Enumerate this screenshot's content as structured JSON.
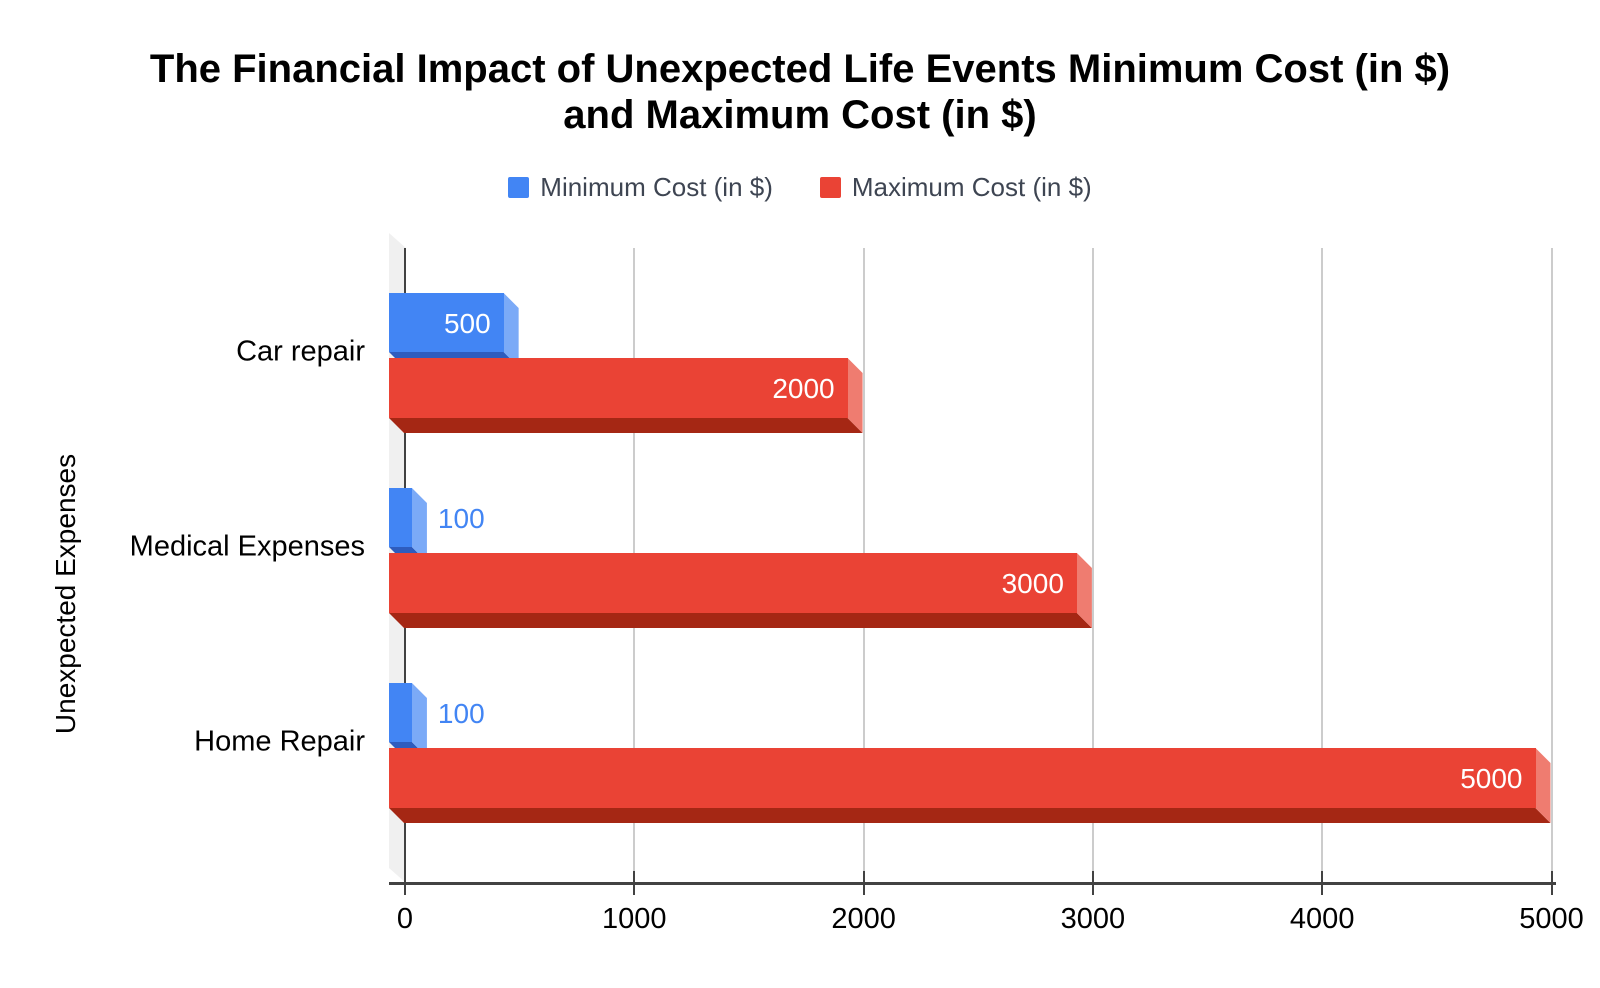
{
  "title": {
    "line1": "The Financial Impact of Unexpected Life Events Minimum Cost (in $)",
    "line2": "and Maximum Cost (in $)",
    "full": "The Financial Impact of Unexpected Life Events Minimum Cost (in $) and Maximum Cost (in $)"
  },
  "legend": {
    "items": [
      {
        "label": "Minimum Cost (in $)",
        "color": "#4285f4"
      },
      {
        "label": "Maximum Cost (in $)",
        "color": "#ea4335"
      }
    ]
  },
  "chart_data": {
    "type": "bar",
    "orientation": "horizontal",
    "style": "3d",
    "title": "The Financial Impact of Unexpected Life Events Minimum Cost (in $) and Maximum Cost (in $)",
    "xlabel": "",
    "ylabel": "Unexpected Expenses",
    "categories": [
      "Car repair",
      "Medical Expenses",
      "Home Repair"
    ],
    "series": [
      {
        "name": "Minimum Cost (in $)",
        "values": [
          500,
          100,
          100
        ],
        "color": "#4285f4",
        "side_color": "#7baaf7",
        "bottom_color": "#2e5cbe",
        "label_inside_color": "#ffffff",
        "label_outside_color": "#4285f4"
      },
      {
        "name": "Maximum Cost (in $)",
        "values": [
          2000,
          3000,
          5000
        ],
        "color": "#ea4335",
        "side_color": "#ef7c70",
        "bottom_color": "#a52714",
        "label_inside_color": "#ffffff"
      }
    ],
    "x_ticks": [
      0,
      1000,
      2000,
      3000,
      4000,
      5000
    ],
    "xlim": [
      0,
      5000
    ],
    "grid": true,
    "legend_position": "top",
    "wall_color": "#f0f0f0",
    "axis_line_color": "#424242",
    "gridline_color": "#cccccc"
  }
}
